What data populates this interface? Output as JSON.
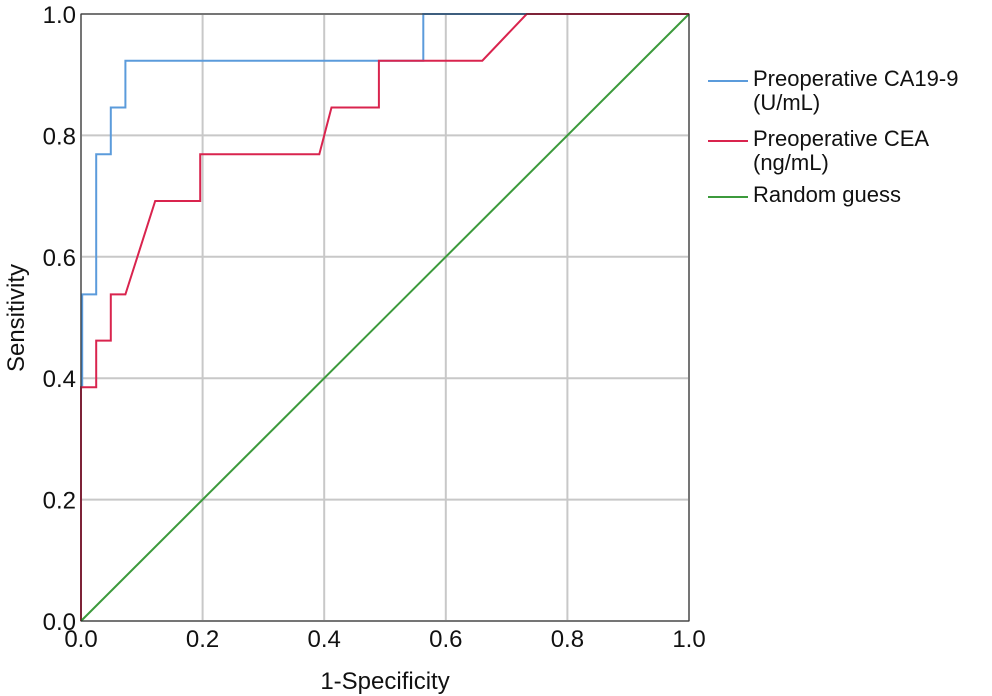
{
  "chart_data": {
    "type": "line",
    "title": "",
    "xlabel": "1-Specificity",
    "ylabel": "Sensitivity",
    "xlim": [
      0,
      1
    ],
    "ylim": [
      0,
      1
    ],
    "grid": true,
    "legend_position": "right",
    "x_ticks": [
      "0.0",
      "0.2",
      "0.4",
      "0.6",
      "0.8",
      "1.0"
    ],
    "y_ticks": [
      "0.0",
      "0.2",
      "0.4",
      "0.6",
      "0.8",
      "1.0"
    ],
    "tick_values": [
      0,
      0.2,
      0.4,
      0.6,
      0.8,
      1.0
    ],
    "series": [
      {
        "name": "Preoperative CA19-9 (U/mL)",
        "legend_lines": [
          "Preoperative CA19-9",
          "(U/mL)"
        ],
        "color": "#5b9bdb",
        "x": [
          0,
          0,
          0.002,
          0.002,
          0.025,
          0.025,
          0.049,
          0.049,
          0.073,
          0.073,
          0.563,
          0.563,
          1.0
        ],
        "y": [
          0,
          0.385,
          0.385,
          0.538,
          0.538,
          0.769,
          0.769,
          0.846,
          0.846,
          0.923,
          0.923,
          1.0,
          1.0
        ]
      },
      {
        "name": "Preoperative CEA (ng/mL)",
        "legend_lines": [
          "Preoperative CEA",
          "(ng/mL)"
        ],
        "color": "#d9244e",
        "x": [
          0,
          0,
          0.025,
          0.025,
          0.049,
          0.049,
          0.073,
          0.122,
          0.196,
          0.196,
          0.392,
          0.412,
          0.49,
          0.49,
          0.66,
          0.733,
          1.0
        ],
        "y": [
          0,
          0.385,
          0.385,
          0.462,
          0.462,
          0.538,
          0.538,
          0.692,
          0.692,
          0.769,
          0.769,
          0.846,
          0.846,
          0.923,
          0.923,
          1.0,
          1.0
        ]
      },
      {
        "name": "Random guess",
        "legend_lines": [
          "Random guess"
        ],
        "color": "#3c9a3c",
        "x": [
          0,
          1
        ],
        "y": [
          0,
          1
        ]
      }
    ]
  }
}
